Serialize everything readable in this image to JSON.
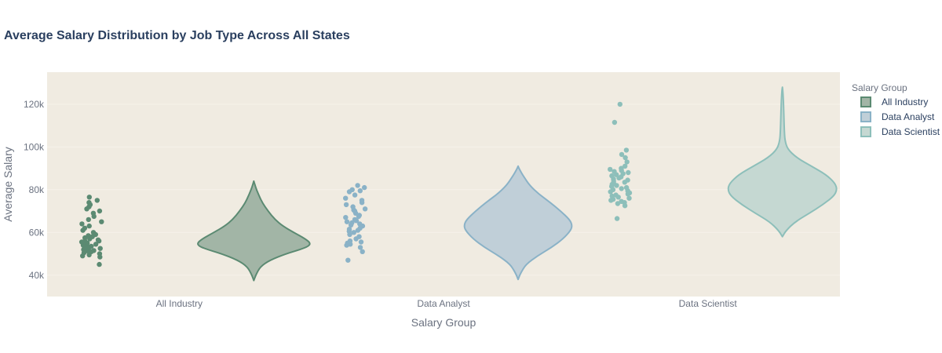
{
  "chart_data": {
    "type": "violin",
    "title": "Average Salary Distribution by Job Type Across All States",
    "xlabel": "Salary Group",
    "ylabel": "Average Salary",
    "ylim": [
      30000,
      135000
    ],
    "yticks": [
      40000,
      60000,
      80000,
      100000,
      120000
    ],
    "ytick_labels": [
      "40k",
      "60k",
      "80k",
      "100k",
      "120k"
    ],
    "categories": [
      "All Industry",
      "Data Analyst",
      "Data Scientist"
    ],
    "legend": {
      "title": "Salary Group",
      "placement": "top-right-outside"
    },
    "plot_bgcolor": "#f0ebe1",
    "series": [
      {
        "name": "All Industry",
        "color": "#5b8a72",
        "fill": "#a2b5a6",
        "range": [
          37500,
          84000
        ],
        "density": [
          [
            37500,
            0.0
          ],
          [
            40000,
            0.03
          ],
          [
            44000,
            0.1
          ],
          [
            47000,
            0.25
          ],
          [
            50000,
            0.5
          ],
          [
            52000,
            0.72
          ],
          [
            53500,
            0.85
          ],
          [
            55000,
            0.88
          ],
          [
            57000,
            0.8
          ],
          [
            60000,
            0.62
          ],
          [
            63000,
            0.45
          ],
          [
            66000,
            0.33
          ],
          [
            70000,
            0.22
          ],
          [
            74000,
            0.13
          ],
          [
            78000,
            0.07
          ],
          [
            81000,
            0.03
          ],
          [
            84000,
            0.0
          ]
        ],
        "points": [
          45000,
          48500,
          49000,
          49500,
          50000,
          50500,
          51000,
          51000,
          51500,
          52000,
          52000,
          52500,
          53000,
          53000,
          53500,
          54000,
          54000,
          54500,
          55000,
          55000,
          55500,
          56000,
          56000,
          56500,
          57000,
          57500,
          58000,
          58500,
          59000,
          60000,
          61000,
          62000,
          63000,
          64000,
          65000,
          66000,
          67500,
          69000,
          70000,
          71000,
          72000,
          73000,
          74000,
          75000,
          76500
        ]
      },
      {
        "name": "Data Analyst",
        "color": "#8ab2c7",
        "fill": "#c0cfd8",
        "range": [
          38000,
          91000
        ],
        "density": [
          [
            38000,
            0.0
          ],
          [
            41000,
            0.04
          ],
          [
            45000,
            0.12
          ],
          [
            49000,
            0.3
          ],
          [
            53000,
            0.52
          ],
          [
            57000,
            0.7
          ],
          [
            61000,
            0.82
          ],
          [
            63500,
            0.84
          ],
          [
            66000,
            0.8
          ],
          [
            70000,
            0.66
          ],
          [
            74000,
            0.5
          ],
          [
            78000,
            0.32
          ],
          [
            82000,
            0.18
          ],
          [
            86000,
            0.09
          ],
          [
            89000,
            0.03
          ],
          [
            91000,
            0.0
          ]
        ],
        "points": [
          47000,
          51000,
          53000,
          54000,
          54500,
          55000,
          55500,
          56000,
          57000,
          58000,
          59000,
          60000,
          60500,
          61000,
          61500,
          62000,
          63000,
          63500,
          64000,
          64500,
          65000,
          65500,
          66000,
          67000,
          67500,
          68000,
          69000,
          70000,
          70500,
          71000,
          72000,
          73000,
          74000,
          75000,
          76000,
          77500,
          79000,
          79500,
          80000,
          81000,
          82000
        ]
      },
      {
        "name": "Data Scientist",
        "color": "#8dbfba",
        "fill": "#c5d8d2",
        "range": [
          58000,
          128000
        ],
        "density": [
          [
            58000,
            0.0
          ],
          [
            61000,
            0.06
          ],
          [
            65000,
            0.2
          ],
          [
            69000,
            0.42
          ],
          [
            73000,
            0.63
          ],
          [
            77000,
            0.8
          ],
          [
            80000,
            0.85
          ],
          [
            83000,
            0.82
          ],
          [
            87000,
            0.68
          ],
          [
            91000,
            0.45
          ],
          [
            95000,
            0.22
          ],
          [
            99000,
            0.08
          ],
          [
            103000,
            0.04
          ],
          [
            108000,
            0.03
          ],
          [
            113000,
            0.025
          ],
          [
            118000,
            0.02
          ],
          [
            122000,
            0.015
          ],
          [
            126000,
            0.008
          ],
          [
            128000,
            0.0
          ]
        ],
        "points": [
          66500,
          72500,
          73500,
          74000,
          74500,
          75000,
          75500,
          76000,
          76500,
          77000,
          77500,
          78000,
          78500,
          79000,
          79500,
          80000,
          80500,
          81000,
          81500,
          82000,
          82500,
          83000,
          83500,
          84000,
          84500,
          85000,
          85500,
          86000,
          86500,
          87000,
          87500,
          88000,
          88500,
          89000,
          89500,
          90000,
          91000,
          93000,
          95000,
          96500,
          98500,
          111500,
          120000
        ]
      }
    ]
  }
}
